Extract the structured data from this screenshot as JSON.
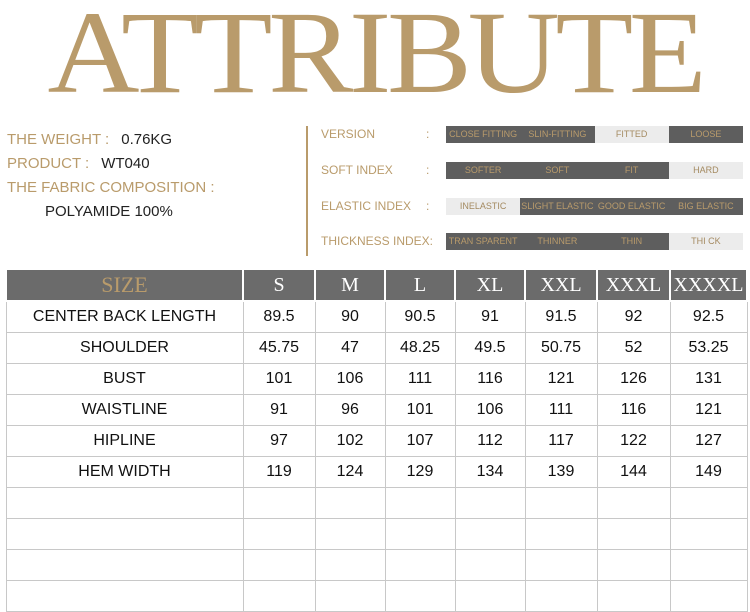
{
  "title": "ATTRIBUTE",
  "info": {
    "weight_label": "THE WEIGHT :",
    "weight_value": "0.76KG",
    "product_label": "PRODUCT :",
    "product_value": "WT040",
    "fabric_label": "THE FABRIC COMPOSITION :",
    "fabric_value": "POLYAMIDE 100%"
  },
  "attributes": [
    {
      "label": "VERSION",
      "colon": ":",
      "options": [
        "CLOSE FITTING",
        "SLIN-FITTING",
        "FITTED",
        "LOOSE"
      ],
      "styles": [
        "dark",
        "dark",
        "sel",
        "dark"
      ]
    },
    {
      "label": "SOFT INDEX",
      "colon": ":",
      "options": [
        "SOFTER",
        "SOFT",
        "FIT",
        "HARD"
      ],
      "styles": [
        "dark",
        "dark",
        "dark",
        "sel"
      ]
    },
    {
      "label": "ELASTIC INDEX",
      "colon": ":",
      "options": [
        "INELASTIC",
        "SLIGHT ELASTIC",
        "GOOD ELASTIC",
        "BIG ELASTIC"
      ],
      "styles": [
        "sel",
        "dark",
        "dark",
        "dark"
      ]
    },
    {
      "label": "THICKNESS INDEX:",
      "colon": "",
      "options": [
        "TRAN SPARENT",
        "THINNER",
        "THIN",
        "THI CK"
      ],
      "styles": [
        "dark",
        "dark",
        "dark",
        "sel"
      ]
    }
  ],
  "colors": {
    "gold": "#b99b6b",
    "dark_gray": "#5e5e5e",
    "header_gray": "#6b6b6b"
  },
  "table": {
    "header_label": "SIZE",
    "sizes": [
      "S",
      "M",
      "L",
      "XL",
      "XXL",
      "XXXL",
      "XXXXL"
    ],
    "rows": [
      {
        "label": "CENTER BACK LENGTH",
        "values": [
          "89.5",
          "90",
          "90.5",
          "91",
          "91.5",
          "92",
          "92.5"
        ]
      },
      {
        "label": "SHOULDER",
        "values": [
          "45.75",
          "47",
          "48.25",
          "49.5",
          "50.75",
          "52",
          "53.25"
        ]
      },
      {
        "label": "BUST",
        "values": [
          "101",
          "106",
          "111",
          "116",
          "121",
          "126",
          "131"
        ]
      },
      {
        "label": "WAISTLINE",
        "values": [
          "91",
          "96",
          "101",
          "106",
          "111",
          "116",
          "121"
        ]
      },
      {
        "label": "HIPLINE",
        "values": [
          "97",
          "102",
          "107",
          "112",
          "117",
          "122",
          "127"
        ]
      },
      {
        "label": "HEM WIDTH",
        "values": [
          "119",
          "124",
          "129",
          "134",
          "139",
          "144",
          "149"
        ]
      }
    ]
  }
}
